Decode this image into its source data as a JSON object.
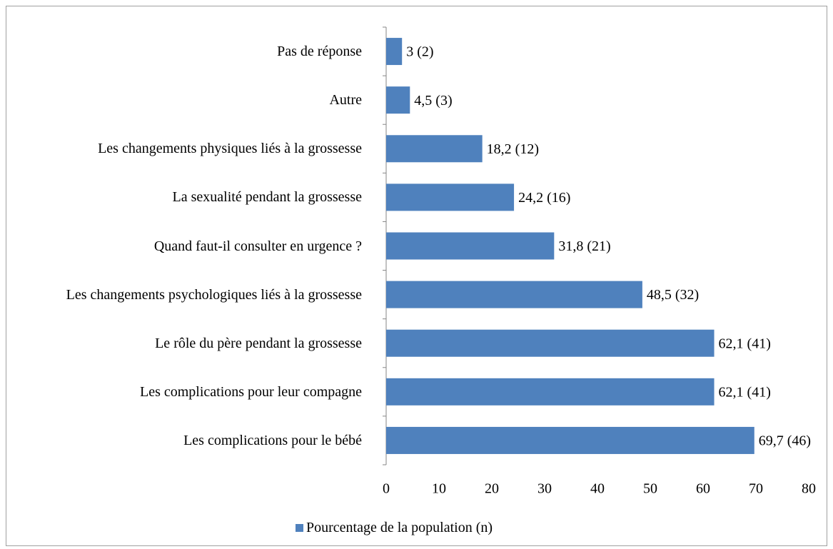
{
  "chart_data": {
    "type": "bar",
    "orientation": "horizontal",
    "categories": [
      "Pas de réponse",
      "Autre",
      "Les changements physiques liés à la grossesse",
      "La sexualité pendant la grossesse",
      "Quand faut-il consulter en urgence ?",
      "Les changements psychologiques liés à la grossesse",
      "Le rôle du père pendant la grossesse",
      "Les complications pour leur compagne",
      "Les complications pour le bébé"
    ],
    "series": [
      {
        "name": "Pourcentage de la population (n)",
        "color": "#4f81bd",
        "values": [
          3,
          4.5,
          18.2,
          24.2,
          31.8,
          48.5,
          62.1,
          62.1,
          69.7
        ],
        "value_labels": [
          "3 (2)",
          "4,5 (3)",
          "18,2 (12)",
          "24,2 (16)",
          "31,8 (21)",
          "48,5 (32)",
          "62,1 (41)",
          "62,1 (41)",
          "69,7 (46)"
        ]
      }
    ],
    "xlim": [
      0,
      80
    ],
    "xticks": [
      0,
      10,
      20,
      30,
      40,
      50,
      60,
      70,
      80
    ],
    "grid": false,
    "legend": "bottom"
  }
}
